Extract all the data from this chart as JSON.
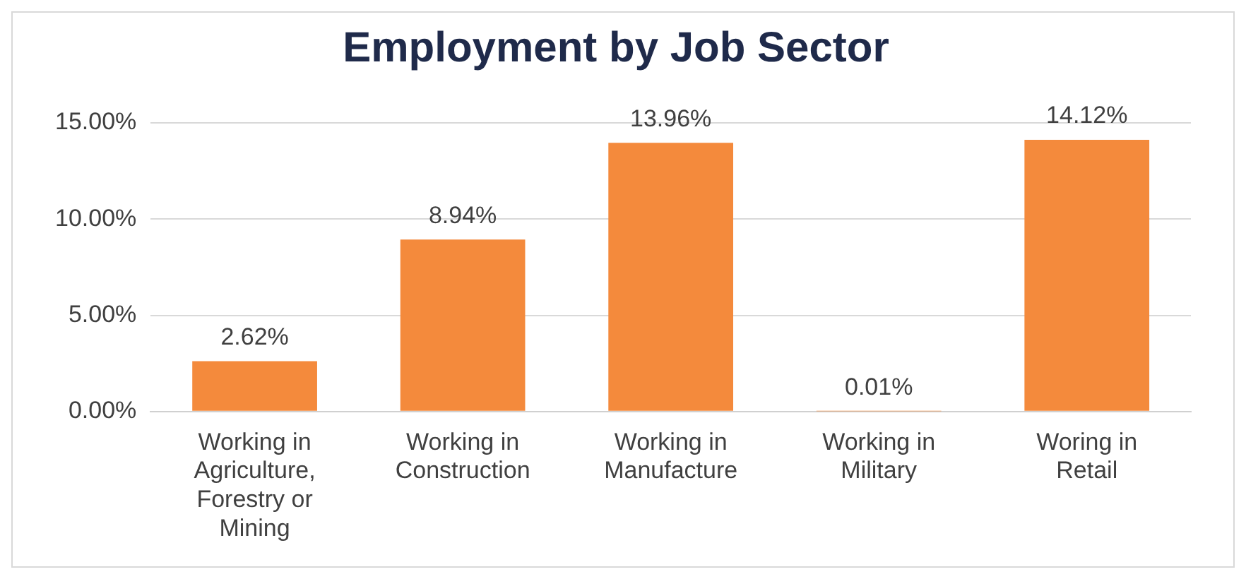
{
  "chart_data": {
    "type": "bar",
    "title": "Employment by Job Sector",
    "categories": [
      "Working in Agriculture, Forestry or Mining",
      "Working in Construction",
      "Working in Manufacture",
      "Working in Military",
      "Woring in Retail"
    ],
    "values": [
      2.62,
      8.94,
      13.96,
      0.01,
      14.12
    ],
    "value_labels": [
      "2.62%",
      "8.94%",
      "13.96%",
      "0.01%",
      "14.12%"
    ],
    "color": "#f48a3c",
    "ylim": [
      0,
      15
    ],
    "yticks": [
      {
        "value": 0,
        "label": "0.00%"
      },
      {
        "value": 5,
        "label": "5.00%"
      },
      {
        "value": 10,
        "label": "10.00%"
      },
      {
        "value": 15,
        "label": "15.00%"
      }
    ],
    "grid": "y",
    "legend": false
  }
}
